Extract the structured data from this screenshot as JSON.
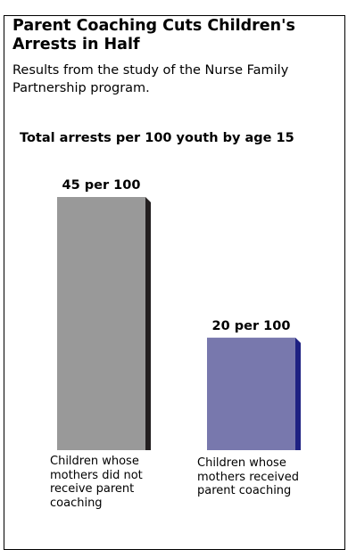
{
  "title": "Parent Coaching Cuts Children's Arrests in Half",
  "subtitle": "Results from the study of the Nurse Family Partnership program.",
  "chart_data": {
    "type": "bar",
    "title": "Total arrests per 100 youth by age 15",
    "categories": [
      "Children whose mothers did not receive parent coaching",
      "Children whose mothers received parent coaching"
    ],
    "values": [
      45,
      20
    ],
    "data_labels": [
      "45 per 100",
      "20 per 100"
    ],
    "unit": "per 100",
    "ylim": [
      0,
      45
    ],
    "colors": {
      "front": [
        "#999999",
        "#7878ad"
      ],
      "side": [
        "#231f20",
        "#1e2182"
      ]
    }
  }
}
